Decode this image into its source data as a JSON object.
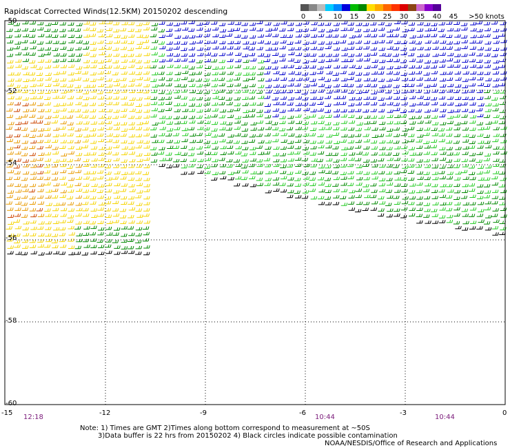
{
  "title": "Rapidscat Corrected Winds(12.5KM) 20150202 descending",
  "legend": {
    "colors": [
      "#555555",
      "#888888",
      "#bbbbbb",
      "#00ccff",
      "#0088ff",
      "#0000dd",
      "#00bb00",
      "#008800",
      "#ffdd00",
      "#ffaa00",
      "#ff6600",
      "#ff3300",
      "#dd0000",
      "#8b4513",
      "#cc66cc",
      "#8800cc",
      "#550099"
    ],
    "labels": [
      "0",
      "5",
      "10",
      "15",
      "20",
      "25",
      "30",
      "35",
      "40",
      "45",
      ">50 knots"
    ]
  },
  "axes": {
    "lat_labels": [
      "-50",
      "-52",
      "-54",
      "-56",
      "-58",
      "-60"
    ],
    "lon_labels": [
      "-15",
      "-12",
      "-9",
      "-6",
      "-3",
      "0"
    ]
  },
  "times": [
    "12:18",
    "10:44",
    "10:44"
  ],
  "notes": [
    "Note: 1) Times are GMT 2)Times along bottom correspond to measurement at ~50S",
    "3)Data buffer is 22 hrs from 20150202 4) Black circles indicate possible contamination",
    "NOAA/NESDIS/Office of Research and Applications"
  ],
  "wind_colors": {
    "yellow": "#f5d400",
    "orange": "#e89a00",
    "red": "#cc4400",
    "green_light": "#22cc22",
    "green_dark": "#008800",
    "blue": "#0000cc",
    "black": "#000000"
  }
}
